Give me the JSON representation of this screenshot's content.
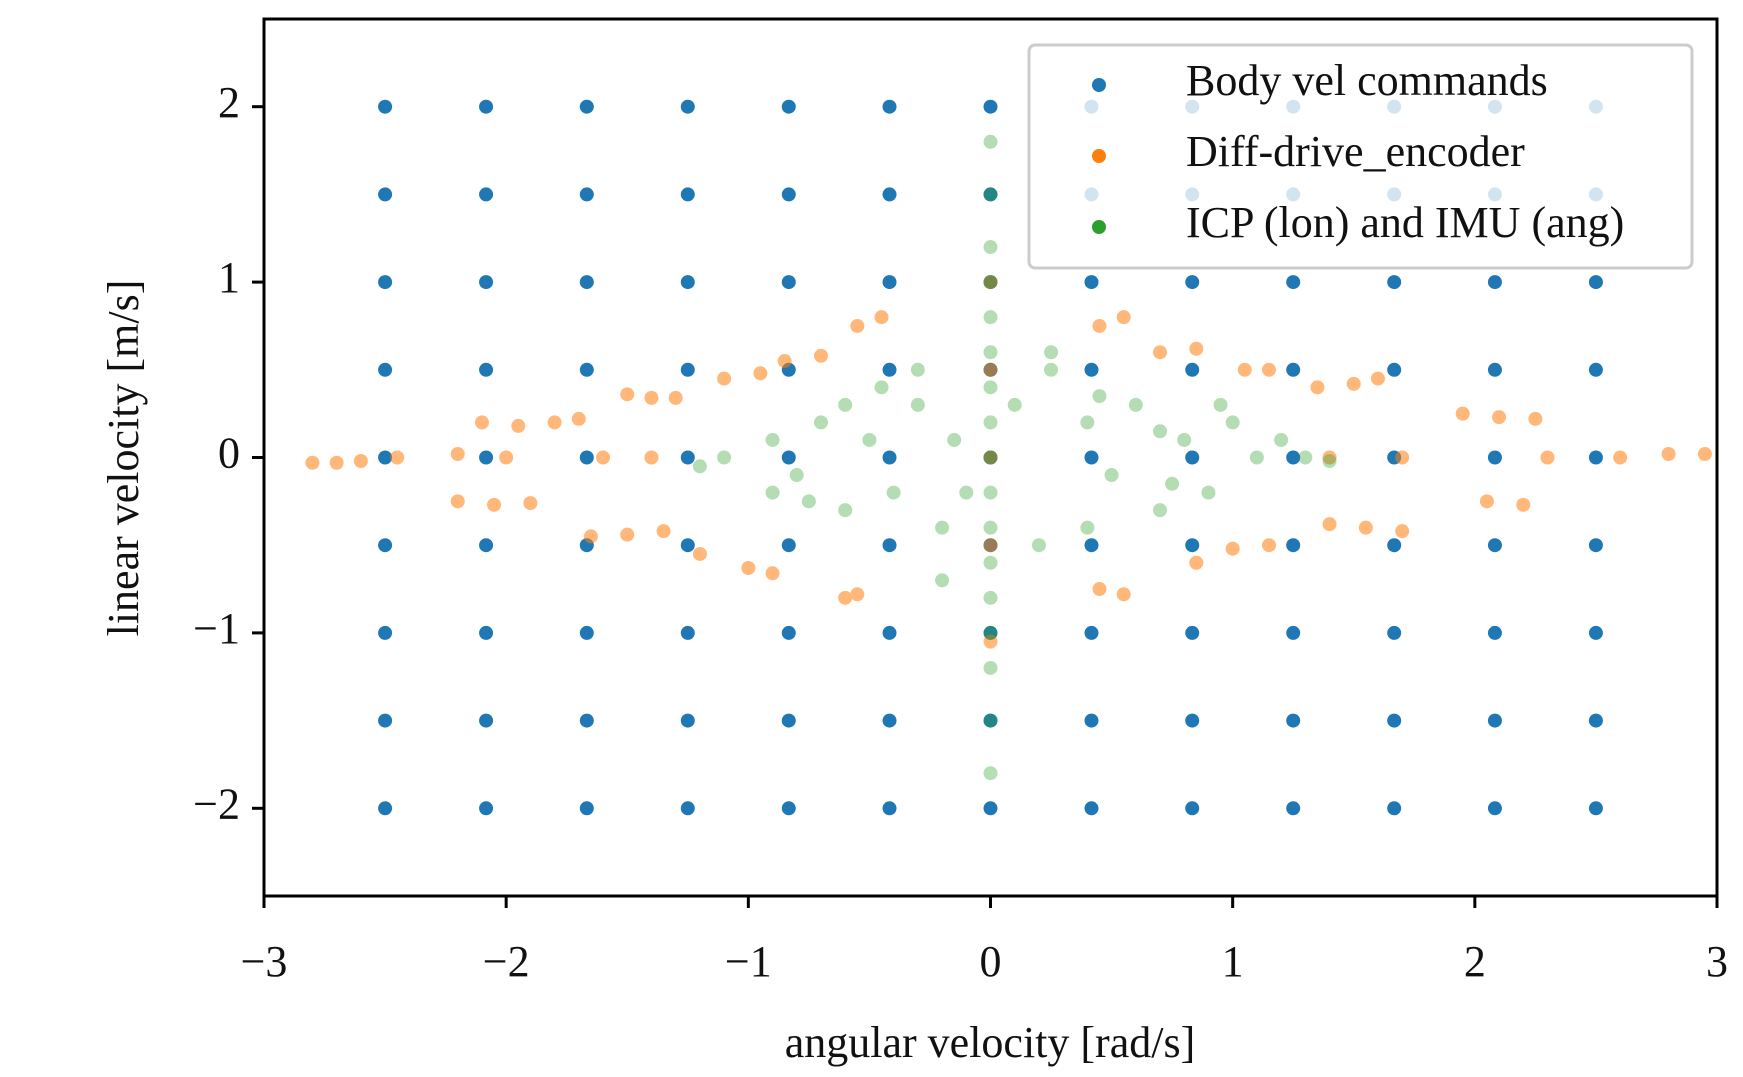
{
  "chart_data": {
    "type": "scatter",
    "xlabel": "angular velocity [rad/s]",
    "ylabel": "linear velocity [m/s]",
    "xlim": [
      -3,
      3
    ],
    "ylim": [
      -2.5,
      2.5
    ],
    "xticks": [
      {
        "value": -3,
        "label": "−3"
      },
      {
        "value": -2,
        "label": "−2"
      },
      {
        "value": -1,
        "label": "−1"
      },
      0,
      1,
      2,
      3
    ],
    "yticks": [
      {
        "value": -2,
        "label": "−2"
      },
      {
        "value": -1,
        "label": "−1"
      },
      0,
      1,
      2
    ],
    "legend": "upper right",
    "series": [
      {
        "name": "Body vel commands",
        "color": "#1f77b4",
        "opacity": 1,
        "x": [
          -2.5,
          -2.083,
          -1.667,
          -1.25,
          -0.833,
          -0.417,
          0,
          0.417,
          0.833,
          1.25,
          1.667,
          2.083,
          2.5,
          -2.5,
          -2.083,
          -1.667,
          -1.25,
          -0.833,
          -0.417,
          0,
          0.417,
          0.833,
          1.25,
          1.667,
          2.083,
          2.5,
          -2.5,
          -2.083,
          -1.667,
          -1.25,
          -0.833,
          -0.417,
          0,
          0.417,
          0.833,
          1.25,
          1.667,
          2.083,
          2.5,
          -2.5,
          -2.083,
          -1.667,
          -1.25,
          -0.833,
          -0.417,
          0,
          0.417,
          0.833,
          1.25,
          1.667,
          2.083,
          2.5,
          -2.5,
          -2.083,
          -1.667,
          -1.25,
          -0.833,
          -0.417,
          0,
          0.417,
          0.833,
          1.25,
          1.667,
          2.083,
          2.5,
          -2.5,
          -2.083,
          -1.667,
          -1.25,
          -0.833,
          -0.417,
          0,
          0.417,
          0.833,
          1.25,
          1.667,
          2.083,
          2.5,
          -2.5,
          -2.083,
          -1.667,
          -1.25,
          -0.833,
          -0.417,
          0,
          0.417,
          0.833,
          1.25,
          1.667,
          2.083,
          2.5,
          -2.5,
          -2.083,
          -1.667,
          -1.25,
          -0.833,
          -0.417,
          0,
          0.417,
          0.833,
          1.25,
          1.667,
          2.083,
          2.5,
          -2.5,
          -2.083,
          -1.667,
          -1.25,
          -0.833,
          -0.417,
          0,
          0.417,
          0.833,
          1.25,
          1.667,
          2.083,
          2.5
        ],
        "values": [
          2,
          2,
          2,
          2,
          2,
          2,
          2,
          2,
          2,
          2,
          2,
          2,
          2,
          1.5,
          1.5,
          1.5,
          1.5,
          1.5,
          1.5,
          1.5,
          1.5,
          1.5,
          1.5,
          1.5,
          1.5,
          1.5,
          1,
          1,
          1,
          1,
          1,
          1,
          1,
          1,
          1,
          1,
          1,
          1,
          1,
          0.5,
          0.5,
          0.5,
          0.5,
          0.5,
          0.5,
          0.5,
          0.5,
          0.5,
          0.5,
          0.5,
          0.5,
          0.5,
          0,
          0,
          0,
          0,
          0,
          0,
          0,
          0,
          0,
          0,
          0,
          0,
          0,
          -0.5,
          -0.5,
          -0.5,
          -0.5,
          -0.5,
          -0.5,
          -0.5,
          -0.5,
          -0.5,
          -0.5,
          -0.5,
          -0.5,
          -0.5,
          -1,
          -1,
          -1,
          -1,
          -1,
          -1,
          -1,
          -1,
          -1,
          -1,
          -1,
          -1,
          -1,
          -1.5,
          -1.5,
          -1.5,
          -1.5,
          -1.5,
          -1.5,
          -1.5,
          -1.5,
          -1.5,
          -1.5,
          -1.5,
          -1.5,
          -1.5,
          -2,
          -2,
          -2,
          -2,
          -2,
          -2,
          -2,
          -2,
          -2,
          -2,
          -2,
          -2,
          -2
        ]
      },
      {
        "name": "Diff-drive_encoder",
        "color": "#ff7f0e",
        "opacity": 0.55,
        "x": [
          -2.8,
          -2.7,
          -2.6,
          -2.45,
          -2.2,
          -2.0,
          -1.6,
          -1.4,
          -2.1,
          -1.95,
          -1.8,
          -1.7,
          -1.5,
          -1.4,
          -1.3,
          -1.1,
          -0.95,
          -0.85,
          -0.7,
          -0.55,
          -0.45,
          -2.2,
          -2.05,
          -1.9,
          -1.65,
          -1.5,
          -1.35,
          -1.2,
          -1.0,
          -0.9,
          -0.6,
          -0.55,
          0.45,
          0.55,
          0.7,
          0.85,
          1.05,
          1.15,
          1.35,
          1.5,
          1.6,
          1.95,
          2.1,
          2.25,
          2.6,
          2.8,
          2.95,
          2.3,
          1.7,
          1.4,
          2.05,
          2.2,
          1.7,
          1.55,
          1.4,
          1.15,
          1.0,
          0.85,
          0.55,
          0.45,
          0,
          0,
          0,
          0,
          0
        ],
        "values": [
          -0.03,
          -0.03,
          -0.02,
          0,
          0.02,
          0,
          0,
          0,
          0.2,
          0.18,
          0.2,
          0.22,
          0.36,
          0.34,
          0.34,
          0.45,
          0.48,
          0.55,
          0.58,
          0.75,
          0.8,
          -0.25,
          -0.27,
          -0.26,
          -0.45,
          -0.44,
          -0.42,
          -0.55,
          -0.63,
          -0.66,
          -0.8,
          -0.78,
          0.75,
          0.8,
          0.6,
          0.62,
          0.5,
          0.5,
          0.4,
          0.42,
          0.45,
          0.25,
          0.23,
          0.22,
          0,
          0.02,
          0.02,
          0,
          0,
          0,
          -0.25,
          -0.27,
          -0.42,
          -0.4,
          -0.38,
          -0.5,
          -0.52,
          -0.6,
          -0.78,
          -0.75,
          1.0,
          0.5,
          0,
          -0.5,
          -1.05
        ]
      },
      {
        "name": "ICP (lon) and IMU (ang)",
        "color": "#2ca02c",
        "opacity": 0.35,
        "x": [
          0,
          0,
          0,
          0,
          0,
          0,
          0,
          0,
          0,
          0,
          0,
          0,
          0,
          0,
          0,
          0,
          0,
          -0.9,
          -0.8,
          -0.7,
          -0.6,
          -0.5,
          -0.4,
          -0.3,
          -0.2,
          -0.6,
          -0.75,
          -1.1,
          -0.9,
          -0.3,
          -0.15,
          0.4,
          0.5,
          0.6,
          0.7,
          0.8,
          0.9,
          1.0,
          1.1,
          1.3,
          1.4,
          0.7,
          0.75,
          0.25,
          0.25,
          0.2,
          0.4,
          -0.2,
          0.45,
          1.2,
          0.95,
          -0.45,
          -0.1,
          0.1,
          -1.2
        ],
        "values": [
          -1.8,
          -1.5,
          -1.2,
          -1,
          -0.8,
          -0.6,
          -0.4,
          -0.2,
          0,
          0.2,
          0.4,
          0.6,
          0.8,
          1.0,
          1.2,
          1.5,
          1.8,
          0.1,
          -0.1,
          0.2,
          -0.3,
          0.1,
          -0.2,
          0.3,
          -0.4,
          0.3,
          -0.25,
          0,
          -0.2,
          0.5,
          0.1,
          0.2,
          -0.1,
          0.3,
          -0.3,
          0.1,
          -0.2,
          0.2,
          0,
          0,
          -0.02,
          0.15,
          -0.15,
          0.6,
          0.5,
          -0.5,
          -0.4,
          -0.7,
          0.35,
          0.1,
          0.3,
          0.4,
          -0.2,
          0.3,
          -0.05
        ]
      }
    ]
  }
}
